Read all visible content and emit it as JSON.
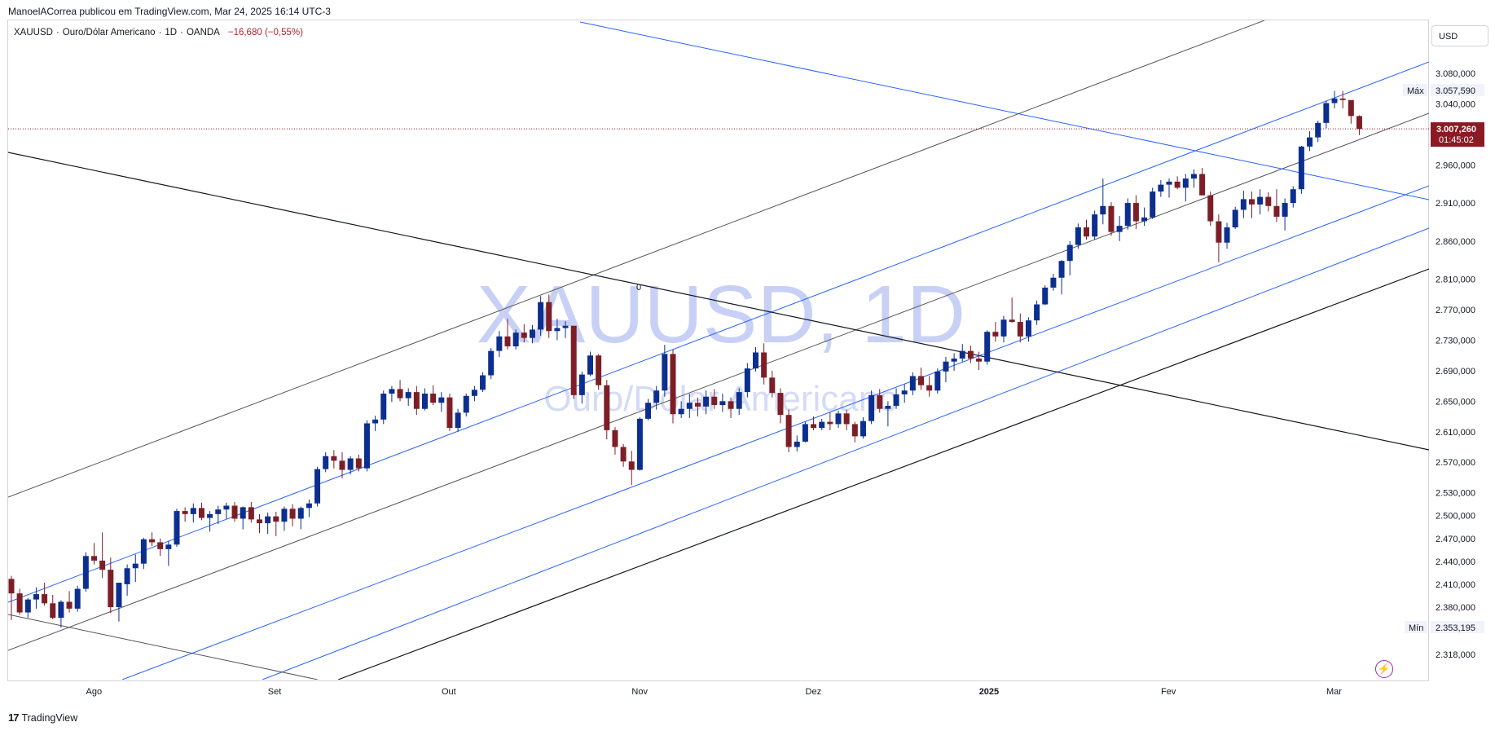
{
  "header": {
    "published_by": "ManoelACorrea publicou em TradingView.com, Mar 24, 2025 16:14 UTC-3"
  },
  "legend": {
    "symbol": "XAUUSD",
    "description": "Ouro/Dólar Americano",
    "interval": "1D",
    "exchange": "OANDA",
    "change": "−16,680 (−0,55%)",
    "sep": "·"
  },
  "currency_button": "USD",
  "watermark": {
    "line1": "XAUUSD, 1D",
    "line2": "Ouro/Dólar Americano"
  },
  "footer": {
    "brand": "TradingView",
    "logo": "TV-logo-icon"
  },
  "colors": {
    "up": "#0c2f8f",
    "down": "#7d1e27",
    "blue_line": "#2962ff",
    "price_tag": "#8b1a24",
    "grid": "#f0f3fa"
  },
  "chart_data": {
    "type": "candlestick",
    "title": "XAUUSD, 1D",
    "ylim": [
      2290,
      3110
    ],
    "y_ticks": [
      "3.080,000",
      "3.040,000",
      "2.960,000",
      "2.910,000",
      "2.860,000",
      "2.810,000",
      "2.770,000",
      "2.730,000",
      "2.690,000",
      "2.650,000",
      "2.610,000",
      "2.570,000",
      "2.530,000",
      "2.500,000",
      "2.470,000",
      "2.440,000",
      "2.410,000",
      "2.380,000",
      "2.318,000"
    ],
    "y_tick_values": [
      3080,
      3040,
      2960,
      2910,
      2860,
      2810,
      2770,
      2730,
      2690,
      2650,
      2610,
      2570,
      2530,
      2500,
      2470,
      2440,
      2410,
      2380,
      2318
    ],
    "x_ticks": [
      {
        "label": "Ago",
        "idx": 10
      },
      {
        "label": "Set",
        "idx": 32
      },
      {
        "label": "Out",
        "idx": 53
      },
      {
        "label": "Nov",
        "idx": 76
      },
      {
        "label": "Dez",
        "idx": 97
      },
      {
        "label": "2025",
        "idx": 118,
        "bold": true
      },
      {
        "label": "Fev",
        "idx": 140
      },
      {
        "label": "Mar",
        "idx": 160
      }
    ],
    "price_labels": {
      "max": {
        "tag": "Máx",
        "value": "3.057,590",
        "y": 3057.59
      },
      "last": {
        "value": "3.007,260",
        "countdown": "01:45:02",
        "y": 3007.26
      },
      "min": {
        "tag": "Mín",
        "value": "2.353,195",
        "y": 2353.195
      }
    },
    "annotation_zero": "0",
    "candles": [
      [
        2417,
        2421,
        2363,
        2398
      ],
      [
        2398,
        2404,
        2370,
        2373
      ],
      [
        2373,
        2392,
        2366,
        2390
      ],
      [
        2390,
        2406,
        2378,
        2397
      ],
      [
        2397,
        2412,
        2382,
        2385
      ],
      [
        2385,
        2396,
        2364,
        2366
      ],
      [
        2366,
        2389,
        2353,
        2387
      ],
      [
        2387,
        2401,
        2373,
        2378
      ],
      [
        2378,
        2408,
        2374,
        2404
      ],
      [
        2404,
        2452,
        2400,
        2447
      ],
      [
        2447,
        2464,
        2436,
        2441
      ],
      [
        2441,
        2478,
        2418,
        2429
      ],
      [
        2429,
        2445,
        2372,
        2380
      ],
      [
        2380,
        2408,
        2361,
        2412
      ],
      [
        2410,
        2436,
        2395,
        2431
      ],
      [
        2431,
        2449,
        2413,
        2437
      ],
      [
        2437,
        2471,
        2430,
        2469
      ],
      [
        2469,
        2478,
        2460,
        2465
      ],
      [
        2465,
        2470,
        2447,
        2456
      ],
      [
        2456,
        2467,
        2434,
        2462
      ],
      [
        2462,
        2509,
        2459,
        2506
      ],
      [
        2506,
        2511,
        2492,
        2502
      ],
      [
        2502,
        2516,
        2491,
        2510
      ],
      [
        2510,
        2517,
        2494,
        2497
      ],
      [
        2497,
        2506,
        2479,
        2502
      ],
      [
        2502,
        2513,
        2489,
        2508
      ],
      [
        2508,
        2517,
        2496,
        2513
      ],
      [
        2513,
        2518,
        2492,
        2496
      ],
      [
        2496,
        2512,
        2482,
        2511
      ],
      [
        2511,
        2518,
        2491,
        2495
      ],
      [
        2495,
        2502,
        2477,
        2490
      ],
      [
        2490,
        2504,
        2476,
        2499
      ],
      [
        2499,
        2505,
        2473,
        2492
      ],
      [
        2492,
        2512,
        2480,
        2509
      ],
      [
        2509,
        2515,
        2486,
        2496
      ],
      [
        2496,
        2512,
        2482,
        2510
      ],
      [
        2510,
        2521,
        2498,
        2516
      ],
      [
        2516,
        2564,
        2512,
        2561
      ],
      [
        2561,
        2583,
        2557,
        2578
      ],
      [
        2578,
        2586,
        2562,
        2572
      ],
      [
        2572,
        2583,
        2549,
        2560
      ],
      [
        2560,
        2578,
        2554,
        2575
      ],
      [
        2575,
        2580,
        2558,
        2562
      ],
      [
        2562,
        2625,
        2558,
        2621
      ],
      [
        2621,
        2631,
        2611,
        2626
      ],
      [
        2626,
        2664,
        2620,
        2660
      ],
      [
        2660,
        2670,
        2649,
        2666
      ],
      [
        2666,
        2678,
        2650,
        2654
      ],
      [
        2654,
        2667,
        2644,
        2662
      ],
      [
        2662,
        2670,
        2632,
        2640
      ],
      [
        2640,
        2667,
        2638,
        2660
      ],
      [
        2660,
        2671,
        2645,
        2648
      ],
      [
        2648,
        2662,
        2636,
        2655
      ],
      [
        2655,
        2660,
        2611,
        2615
      ],
      [
        2615,
        2640,
        2610,
        2635
      ],
      [
        2635,
        2660,
        2630,
        2657
      ],
      [
        2657,
        2670,
        2650,
        2665
      ],
      [
        2665,
        2688,
        2662,
        2684
      ],
      [
        2684,
        2720,
        2679,
        2716
      ],
      [
        2716,
        2742,
        2708,
        2735
      ],
      [
        2735,
        2758,
        2718,
        2722
      ],
      [
        2722,
        2744,
        2718,
        2740
      ],
      [
        2740,
        2751,
        2727,
        2733
      ],
      [
        2733,
        2750,
        2726,
        2744
      ],
      [
        2744,
        2788,
        2736,
        2780
      ],
      [
        2780,
        2790,
        2733,
        2742
      ],
      [
        2742,
        2758,
        2730,
        2746
      ],
      [
        2746,
        2755,
        2733,
        2749
      ],
      [
        2749,
        2742,
        2653,
        2658
      ],
      [
        2658,
        2689,
        2647,
        2685
      ],
      [
        2685,
        2715,
        2683,
        2710
      ],
      [
        2710,
        2712,
        2665,
        2671
      ],
      [
        2671,
        2678,
        2600,
        2612
      ],
      [
        2612,
        2616,
        2580,
        2590
      ],
      [
        2590,
        2594,
        2564,
        2571
      ],
      [
        2571,
        2585,
        2540,
        2560
      ],
      [
        2560,
        2629,
        2559,
        2627
      ],
      [
        2627,
        2653,
        2625,
        2648
      ],
      [
        2648,
        2670,
        2639,
        2664
      ],
      [
        2664,
        2724,
        2656,
        2712
      ],
      [
        2712,
        2718,
        2621,
        2633
      ],
      [
        2633,
        2650,
        2628,
        2640
      ],
      [
        2640,
        2660,
        2628,
        2648
      ],
      [
        2648,
        2655,
        2630,
        2643
      ],
      [
        2643,
        2664,
        2633,
        2656
      ],
      [
        2656,
        2666,
        2640,
        2645
      ],
      [
        2645,
        2660,
        2636,
        2650
      ],
      [
        2650,
        2655,
        2628,
        2640
      ],
      [
        2640,
        2667,
        2632,
        2662
      ],
      [
        2662,
        2700,
        2655,
        2693
      ],
      [
        2693,
        2721,
        2689,
        2714
      ],
      [
        2714,
        2726,
        2672,
        2681
      ],
      [
        2681,
        2690,
        2655,
        2661
      ],
      [
        2661,
        2667,
        2621,
        2632
      ],
      [
        2632,
        2639,
        2583,
        2590
      ],
      [
        2590,
        2605,
        2584,
        2597
      ],
      [
        2597,
        2623,
        2596,
        2620
      ],
      [
        2620,
        2630,
        2612,
        2615
      ],
      [
        2615,
        2627,
        2612,
        2623
      ],
      [
        2623,
        2635,
        2612,
        2620
      ],
      [
        2620,
        2638,
        2615,
        2634
      ],
      [
        2634,
        2639,
        2612,
        2620
      ],
      [
        2620,
        2623,
        2596,
        2604
      ],
      [
        2604,
        2629,
        2601,
        2624
      ],
      [
        2624,
        2664,
        2620,
        2658
      ],
      [
        2658,
        2666,
        2635,
        2640
      ],
      [
        2640,
        2650,
        2617,
        2644
      ],
      [
        2644,
        2667,
        2640,
        2659
      ],
      [
        2659,
        2672,
        2648,
        2664
      ],
      [
        2664,
        2688,
        2658,
        2683
      ],
      [
        2683,
        2694,
        2665,
        2671
      ],
      [
        2671,
        2683,
        2656,
        2664
      ],
      [
        2664,
        2693,
        2660,
        2689
      ],
      [
        2689,
        2708,
        2675,
        2702
      ],
      [
        2702,
        2713,
        2690,
        2706
      ],
      [
        2706,
        2725,
        2702,
        2716
      ],
      [
        2716,
        2723,
        2700,
        2706
      ],
      [
        2706,
        2715,
        2691,
        2702
      ],
      [
        2702,
        2743,
        2698,
        2741
      ],
      [
        2741,
        2754,
        2728,
        2735
      ],
      [
        2735,
        2762,
        2727,
        2757
      ],
      [
        2757,
        2786,
        2753,
        2754
      ],
      [
        2754,
        2765,
        2727,
        2735
      ],
      [
        2735,
        2760,
        2728,
        2756
      ],
      [
        2756,
        2782,
        2750,
        2777
      ],
      [
        2777,
        2802,
        2776,
        2799
      ],
      [
        2799,
        2817,
        2795,
        2812
      ],
      [
        2812,
        2835,
        2790,
        2834
      ],
      [
        2834,
        2860,
        2815,
        2855
      ],
      [
        2855,
        2883,
        2850,
        2878
      ],
      [
        2878,
        2888,
        2862,
        2866
      ],
      [
        2866,
        2900,
        2862,
        2895
      ],
      [
        2895,
        2942,
        2882,
        2906
      ],
      [
        2906,
        2911,
        2867,
        2872
      ],
      [
        2872,
        2893,
        2860,
        2880
      ],
      [
        2880,
        2916,
        2875,
        2910
      ],
      [
        2910,
        2920,
        2876,
        2886
      ],
      [
        2886,
        2904,
        2880,
        2891
      ],
      [
        2891,
        2930,
        2889,
        2925
      ],
      [
        2925,
        2940,
        2918,
        2934
      ],
      [
        2934,
        2942,
        2917,
        2938
      ],
      [
        2938,
        2945,
        2928,
        2930
      ],
      [
        2930,
        2948,
        2912,
        2942
      ],
      [
        2942,
        2954,
        2930,
        2948
      ],
      [
        2948,
        2956,
        2920,
        2920
      ],
      [
        2920,
        2925,
        2880,
        2886
      ],
      [
        2886,
        2895,
        2832,
        2858
      ],
      [
        2858,
        2884,
        2850,
        2878
      ],
      [
        2878,
        2905,
        2876,
        2901
      ],
      [
        2901,
        2926,
        2890,
        2915
      ],
      [
        2915,
        2925,
        2890,
        2908
      ],
      [
        2908,
        2928,
        2895,
        2918
      ],
      [
        2918,
        2924,
        2899,
        2906
      ],
      [
        2906,
        2928,
        2885,
        2892
      ],
      [
        2892,
        2916,
        2874,
        2910
      ],
      [
        2910,
        2932,
        2904,
        2928
      ],
      [
        2928,
        2985,
        2922,
        2984
      ],
      [
        2984,
        3004,
        2978,
        2996
      ],
      [
        2996,
        3018,
        2990,
        3015
      ],
      [
        3015,
        3044,
        3008,
        3041
      ],
      [
        3041,
        3057,
        3034,
        3047
      ],
      [
        3047,
        3057,
        3034,
        3045
      ],
      [
        3045,
        3040,
        3014,
        3024
      ],
      [
        3024,
        3025,
        2999,
        3007
      ]
    ]
  }
}
